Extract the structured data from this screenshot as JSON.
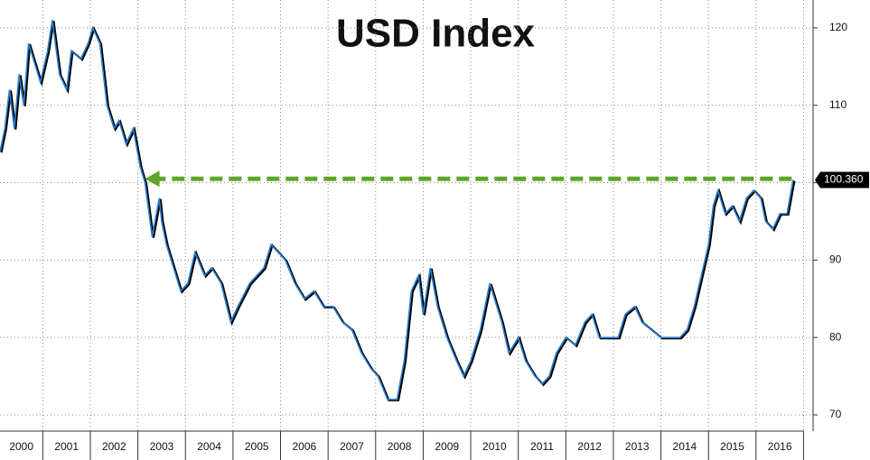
{
  "chart_data": {
    "type": "line",
    "title": "USD Index",
    "x": [
      2000.1,
      2000.2,
      2000.3,
      2000.4,
      2000.5,
      2000.6,
      2000.7,
      2000.8,
      2000.95,
      2001.1,
      2001.2,
      2001.35,
      2001.5,
      2001.6,
      2001.8,
      2001.95,
      2002.05,
      2002.2,
      2002.35,
      2002.5,
      2002.6,
      2002.75,
      2002.9,
      2003.05,
      2003.15,
      2003.3,
      2003.45,
      2003.5,
      2003.6,
      2003.75,
      2003.9,
      2004.05,
      2004.2,
      2004.4,
      2004.55,
      2004.75,
      2004.95,
      2005.1,
      2005.35,
      2005.5,
      2005.65,
      2005.8,
      2005.95,
      2006.1,
      2006.3,
      2006.5,
      2006.7,
      2006.9,
      2007.1,
      2007.3,
      2007.5,
      2007.7,
      2007.9,
      2008.05,
      2008.25,
      2008.45,
      2008.6,
      2008.75,
      2008.9,
      2009.0,
      2009.15,
      2009.3,
      2009.5,
      2009.7,
      2009.85,
      2010.0,
      2010.2,
      2010.4,
      2010.5,
      2010.65,
      2010.8,
      2011.0,
      2011.15,
      2011.35,
      2011.5,
      2011.65,
      2011.8,
      2012.0,
      2012.2,
      2012.4,
      2012.55,
      2012.7,
      2012.9,
      2013.1,
      2013.25,
      2013.45,
      2013.6,
      2013.8,
      2014.0,
      2014.2,
      2014.4,
      2014.55,
      2014.7,
      2014.85,
      2015.0,
      2015.1,
      2015.2,
      2015.35,
      2015.5,
      2015.65,
      2015.8,
      2015.95,
      2016.1,
      2016.2,
      2016.35,
      2016.5,
      2016.65,
      2016.78
    ],
    "series": [
      {
        "color": "#2a7fd4",
        "values": [
          104,
          107,
          112,
          107,
          114,
          110,
          118,
          116,
          113,
          117,
          121,
          114,
          112,
          117,
          116,
          118,
          120,
          118,
          110,
          107,
          108,
          105,
          107,
          102,
          100,
          93,
          98,
          95,
          92,
          89,
          86,
          87,
          91,
          88,
          89,
          87,
          82,
          84,
          87,
          88,
          89,
          92,
          91,
          90,
          87,
          85,
          86,
          84,
          84,
          82,
          81,
          78,
          76,
          75,
          72,
          72,
          77,
          86,
          88,
          83,
          89,
          84,
          80,
          77,
          75,
          77,
          81,
          87,
          85,
          82,
          78,
          80,
          77,
          75,
          74,
          75,
          78,
          80,
          79,
          82,
          83,
          80,
          80,
          80,
          83,
          84,
          82,
          81,
          80,
          80,
          80,
          81,
          84,
          88,
          92,
          97,
          99,
          96,
          97,
          95,
          98,
          99,
          98,
          95,
          94,
          96,
          96,
          100.36
        ],
        "value_labels": [
          null,
          null,
          null,
          null,
          null,
          null,
          null,
          null,
          null,
          null,
          null,
          null,
          null,
          null,
          null,
          null,
          null,
          null,
          null,
          null,
          null,
          null,
          null,
          null,
          null,
          null,
          null,
          null,
          null,
          null,
          null,
          null,
          null,
          null,
          null,
          null,
          null,
          null,
          null,
          null,
          null,
          null,
          null,
          null,
          null,
          null,
          null,
          null,
          null,
          null,
          null,
          null,
          null,
          null,
          null,
          null,
          null,
          null,
          null,
          null,
          null,
          null,
          null,
          null,
          null,
          null,
          null,
          null,
          null,
          null,
          null,
          null,
          null,
          null,
          null,
          null,
          null,
          null,
          null,
          null,
          null,
          null,
          null,
          null,
          null,
          null,
          null,
          null,
          null,
          null,
          null,
          null,
          null,
          null,
          null,
          null,
          null,
          null,
          null,
          null,
          null,
          null,
          null,
          null,
          null,
          null,
          null,
          "100.360"
        ]
      }
    ],
    "xlim": [
      2000.1,
      2017.2
    ],
    "xticks": [
      2001,
      2002,
      2003,
      2004,
      2005,
      2006,
      2007,
      2008,
      2009,
      2010,
      2011,
      2012,
      2013,
      2014,
      2015,
      2016,
      2017
    ],
    "year_labels": [
      "2000",
      "2001",
      "2002",
      "2003",
      "2004",
      "2005",
      "2006",
      "2007",
      "2008",
      "2009",
      "2010",
      "2011",
      "2012",
      "2013",
      "2014",
      "2015",
      "2016"
    ],
    "ylim": [
      67.9,
      123.6
    ],
    "yticks": [
      70,
      80,
      90,
      100,
      110,
      120
    ],
    "grid": true,
    "arrow": {
      "x": [
        2016.75,
        2003.15
      ],
      "y": 100.5,
      "color": "#5fa52a"
    }
  }
}
